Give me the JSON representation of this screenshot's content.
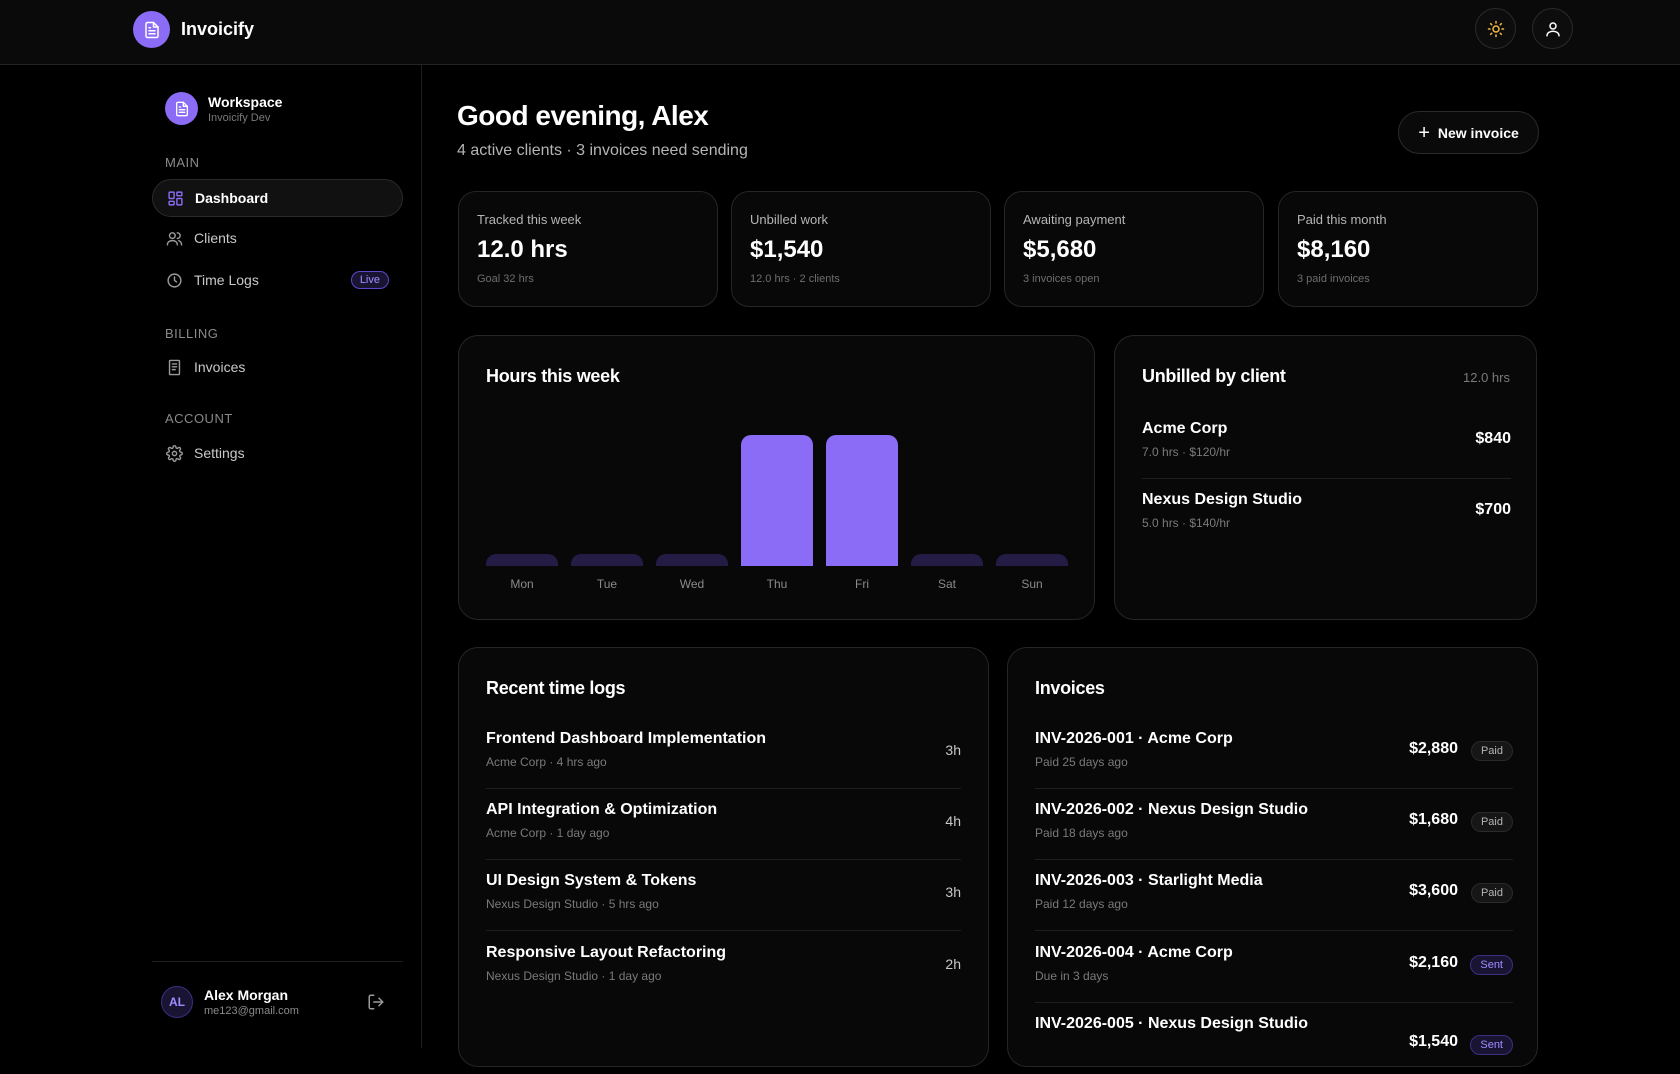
{
  "app": {
    "name": "Invoicify"
  },
  "topbar": {
    "theme_icon": "sun-icon",
    "profile_icon": "user-icon"
  },
  "sidebar": {
    "workspace": {
      "title": "Workspace",
      "subtitle": "Invoicify Dev"
    },
    "sections": [
      {
        "label": "MAIN",
        "items": [
          {
            "label": "Dashboard",
            "icon": "grid-icon",
            "active": true
          },
          {
            "label": "Clients",
            "icon": "users-icon"
          },
          {
            "label": "Time Logs",
            "icon": "clock-icon",
            "badge": "Live"
          }
        ]
      },
      {
        "label": "BILLING",
        "items": [
          {
            "label": "Invoices",
            "icon": "invoice-icon"
          }
        ]
      },
      {
        "label": "ACCOUNT",
        "items": [
          {
            "label": "Settings",
            "icon": "gear-icon"
          }
        ]
      }
    ],
    "user": {
      "initials": "AL",
      "name": "Alex Morgan",
      "email": "me123@gmail.com"
    }
  },
  "header": {
    "greeting": "Good evening, Alex",
    "subtitle": "4 active clients · 3 invoices need sending",
    "new_invoice_label": "New invoice"
  },
  "stats": [
    {
      "label": "Tracked this week",
      "value": "12.0 hrs",
      "note": "Goal 32 hrs"
    },
    {
      "label": "Unbilled work",
      "value": "$1,540",
      "note": "12.0 hrs · 2 clients"
    },
    {
      "label": "Awaiting payment",
      "value": "$5,680",
      "note": "3 invoices open"
    },
    {
      "label": "Paid this month",
      "value": "$8,160",
      "note": "3 paid invoices"
    }
  ],
  "hours_chart": {
    "title": "Hours this week"
  },
  "chart_data": {
    "type": "bar",
    "title": "Hours this week",
    "categories": [
      "Mon",
      "Tue",
      "Wed",
      "Thu",
      "Fri",
      "Sat",
      "Sun"
    ],
    "values": [
      0,
      0,
      0,
      6,
      6,
      0,
      0
    ],
    "ylim": [
      0,
      6
    ],
    "colors": {
      "active": "#8b6cf6",
      "empty": "#241c45"
    }
  },
  "unbilled": {
    "title": "Unbilled by client",
    "total": "12.0 hrs",
    "clients": [
      {
        "name": "Acme Corp",
        "sub": "7.0 hrs · $120/hr",
        "amount": "$840"
      },
      {
        "name": "Nexus Design Studio",
        "sub": "5.0 hrs · $140/hr",
        "amount": "$700"
      }
    ]
  },
  "recent_logs": {
    "title": "Recent time logs",
    "items": [
      {
        "title": "Frontend Dashboard Implementation",
        "sub": "Acme Corp · 4 hrs ago",
        "hours": "3h"
      },
      {
        "title": "API Integration & Optimization",
        "sub": "Acme Corp · 1 day ago",
        "hours": "4h"
      },
      {
        "title": "UI Design System & Tokens",
        "sub": "Nexus Design Studio · 5 hrs ago",
        "hours": "3h"
      },
      {
        "title": "Responsive Layout Refactoring",
        "sub": "Nexus Design Studio · 1 day ago",
        "hours": "2h"
      }
    ]
  },
  "invoices": {
    "title": "Invoices",
    "items": [
      {
        "title": "INV-2026-001 · Acme Corp",
        "sub": "Paid 25 days ago",
        "amount": "$2,880",
        "status": "Paid"
      },
      {
        "title": "INV-2026-002 · Nexus Design Studio",
        "sub": "Paid 18 days ago",
        "amount": "$1,680",
        "status": "Paid"
      },
      {
        "title": "INV-2026-003 · Starlight Media",
        "sub": "Paid 12 days ago",
        "amount": "$3,600",
        "status": "Paid"
      },
      {
        "title": "INV-2026-004 · Acme Corp",
        "sub": "Due in 3 days",
        "amount": "$2,160",
        "status": "Sent"
      },
      {
        "title": "INV-2026-005 · Nexus Design Studio",
        "sub": "",
        "amount": "$1,540",
        "status": "Sent"
      }
    ]
  },
  "colors": {
    "accent": "#8b6cf6",
    "background": "#000000",
    "card": "#080808"
  }
}
